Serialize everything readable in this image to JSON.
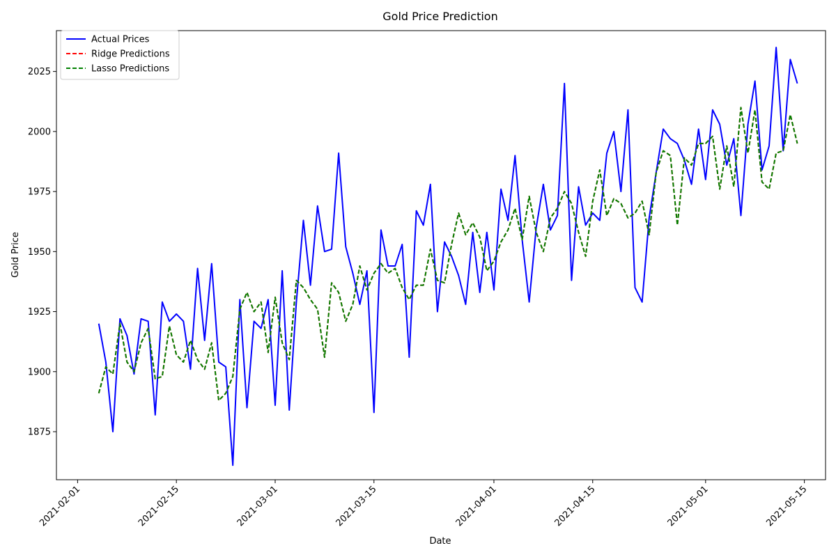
{
  "chart_data": {
    "type": "line",
    "title": "Gold Price Prediction",
    "xlabel": "Date",
    "ylabel": "Gold Price",
    "x_range": [
      "2021-01-29",
      "2021-05-18"
    ],
    "ylim": [
      1855,
      2042
    ],
    "x_ticks": [
      "2021-02-01",
      "2021-02-15",
      "2021-03-01",
      "2021-03-15",
      "2021-04-01",
      "2021-04-15",
      "2021-05-01",
      "2021-05-15"
    ],
    "y_ticks": [
      1875,
      1900,
      1925,
      1950,
      1975,
      2000,
      2025
    ],
    "grid": false,
    "legend_position": "top-left",
    "x_start": "2021-02-04",
    "series": [
      {
        "name": "Actual Prices",
        "color": "#0000ff",
        "style": "solid",
        "values": [
          1920,
          1904,
          1875,
          1922,
          1915,
          1899,
          1922,
          1921,
          1882,
          1929,
          1921,
          1924,
          1921,
          1901,
          1943,
          1913,
          1945,
          1904,
          1902,
          1861,
          1930,
          1885,
          1921,
          1918,
          1930,
          1886,
          1942,
          1884,
          1929,
          1963,
          1936,
          1969,
          1950,
          1951,
          1991,
          1952,
          1941,
          1928,
          1942,
          1883,
          1959,
          1944,
          1944,
          1953,
          1906,
          1967,
          1961,
          1978,
          1925,
          1954,
          1948,
          1940,
          1928,
          1958,
          1933,
          1958,
          1934,
          1976,
          1963,
          1990,
          1955,
          1929,
          1960,
          1978,
          1959,
          1965,
          2020,
          1938,
          1977,
          1961,
          1966,
          1963,
          1991,
          2000,
          1975,
          2009,
          1935,
          1929,
          1964,
          1983,
          2001,
          1997,
          1995,
          1988,
          1978,
          2001,
          1980,
          2009,
          2003,
          1986,
          1997,
          1965,
          2003,
          2021,
          1984,
          1994,
          2035,
          1992,
          2030,
          2020
        ]
      },
      {
        "name": "Ridge Predictions",
        "color": "#ff0000",
        "style": "dashed",
        "values": [
          1891,
          1902,
          1899,
          1920,
          1904,
          1900,
          1912,
          1918,
          1897,
          1898,
          1919,
          1907,
          1904,
          1913,
          1905,
          1901,
          1912,
          1888,
          1891,
          1898,
          1926,
          1933,
          1925,
          1929,
          1908,
          1931,
          1912,
          1905,
          1938,
          1935,
          1930,
          1926,
          1906,
          1937,
          1933,
          1921,
          1928,
          1944,
          1934,
          1941,
          1945,
          1941,
          1943,
          1935,
          1930,
          1936,
          1936,
          1951,
          1938,
          1937,
          1953,
          1966,
          1957,
          1962,
          1956,
          1942,
          1946,
          1954,
          1959,
          1968,
          1955,
          1973,
          1958,
          1950,
          1964,
          1968,
          1975,
          1970,
          1958,
          1948,
          1971,
          1984,
          1965,
          1972,
          1970,
          1964,
          1966,
          1971,
          1957,
          1983,
          1992,
          1990,
          1961,
          1989,
          1986,
          1995,
          1995,
          1998,
          1976,
          1994,
          1977,
          2010,
          1991,
          2009,
          1979,
          1976,
          1991,
          1992,
          2007,
          1995
        ]
      },
      {
        "name": "Lasso Predictions",
        "color": "#008000",
        "style": "dashed",
        "values": [
          1891,
          1902,
          1899,
          1920,
          1904,
          1900,
          1912,
          1918,
          1897,
          1898,
          1919,
          1907,
          1904,
          1913,
          1905,
          1901,
          1912,
          1888,
          1891,
          1898,
          1926,
          1933,
          1925,
          1929,
          1908,
          1931,
          1912,
          1905,
          1938,
          1935,
          1930,
          1926,
          1906,
          1937,
          1933,
          1921,
          1928,
          1944,
          1934,
          1941,
          1945,
          1941,
          1943,
          1935,
          1930,
          1936,
          1936,
          1951,
          1938,
          1937,
          1953,
          1966,
          1957,
          1962,
          1956,
          1942,
          1946,
          1954,
          1959,
          1968,
          1955,
          1973,
          1958,
          1950,
          1964,
          1968,
          1975,
          1970,
          1958,
          1948,
          1971,
          1984,
          1965,
          1972,
          1970,
          1964,
          1966,
          1971,
          1957,
          1983,
          1992,
          1990,
          1961,
          1989,
          1986,
          1995,
          1995,
          1998,
          1976,
          1994,
          1977,
          2010,
          1991,
          2009,
          1979,
          1976,
          1991,
          1992,
          2007,
          1995
        ]
      }
    ]
  }
}
